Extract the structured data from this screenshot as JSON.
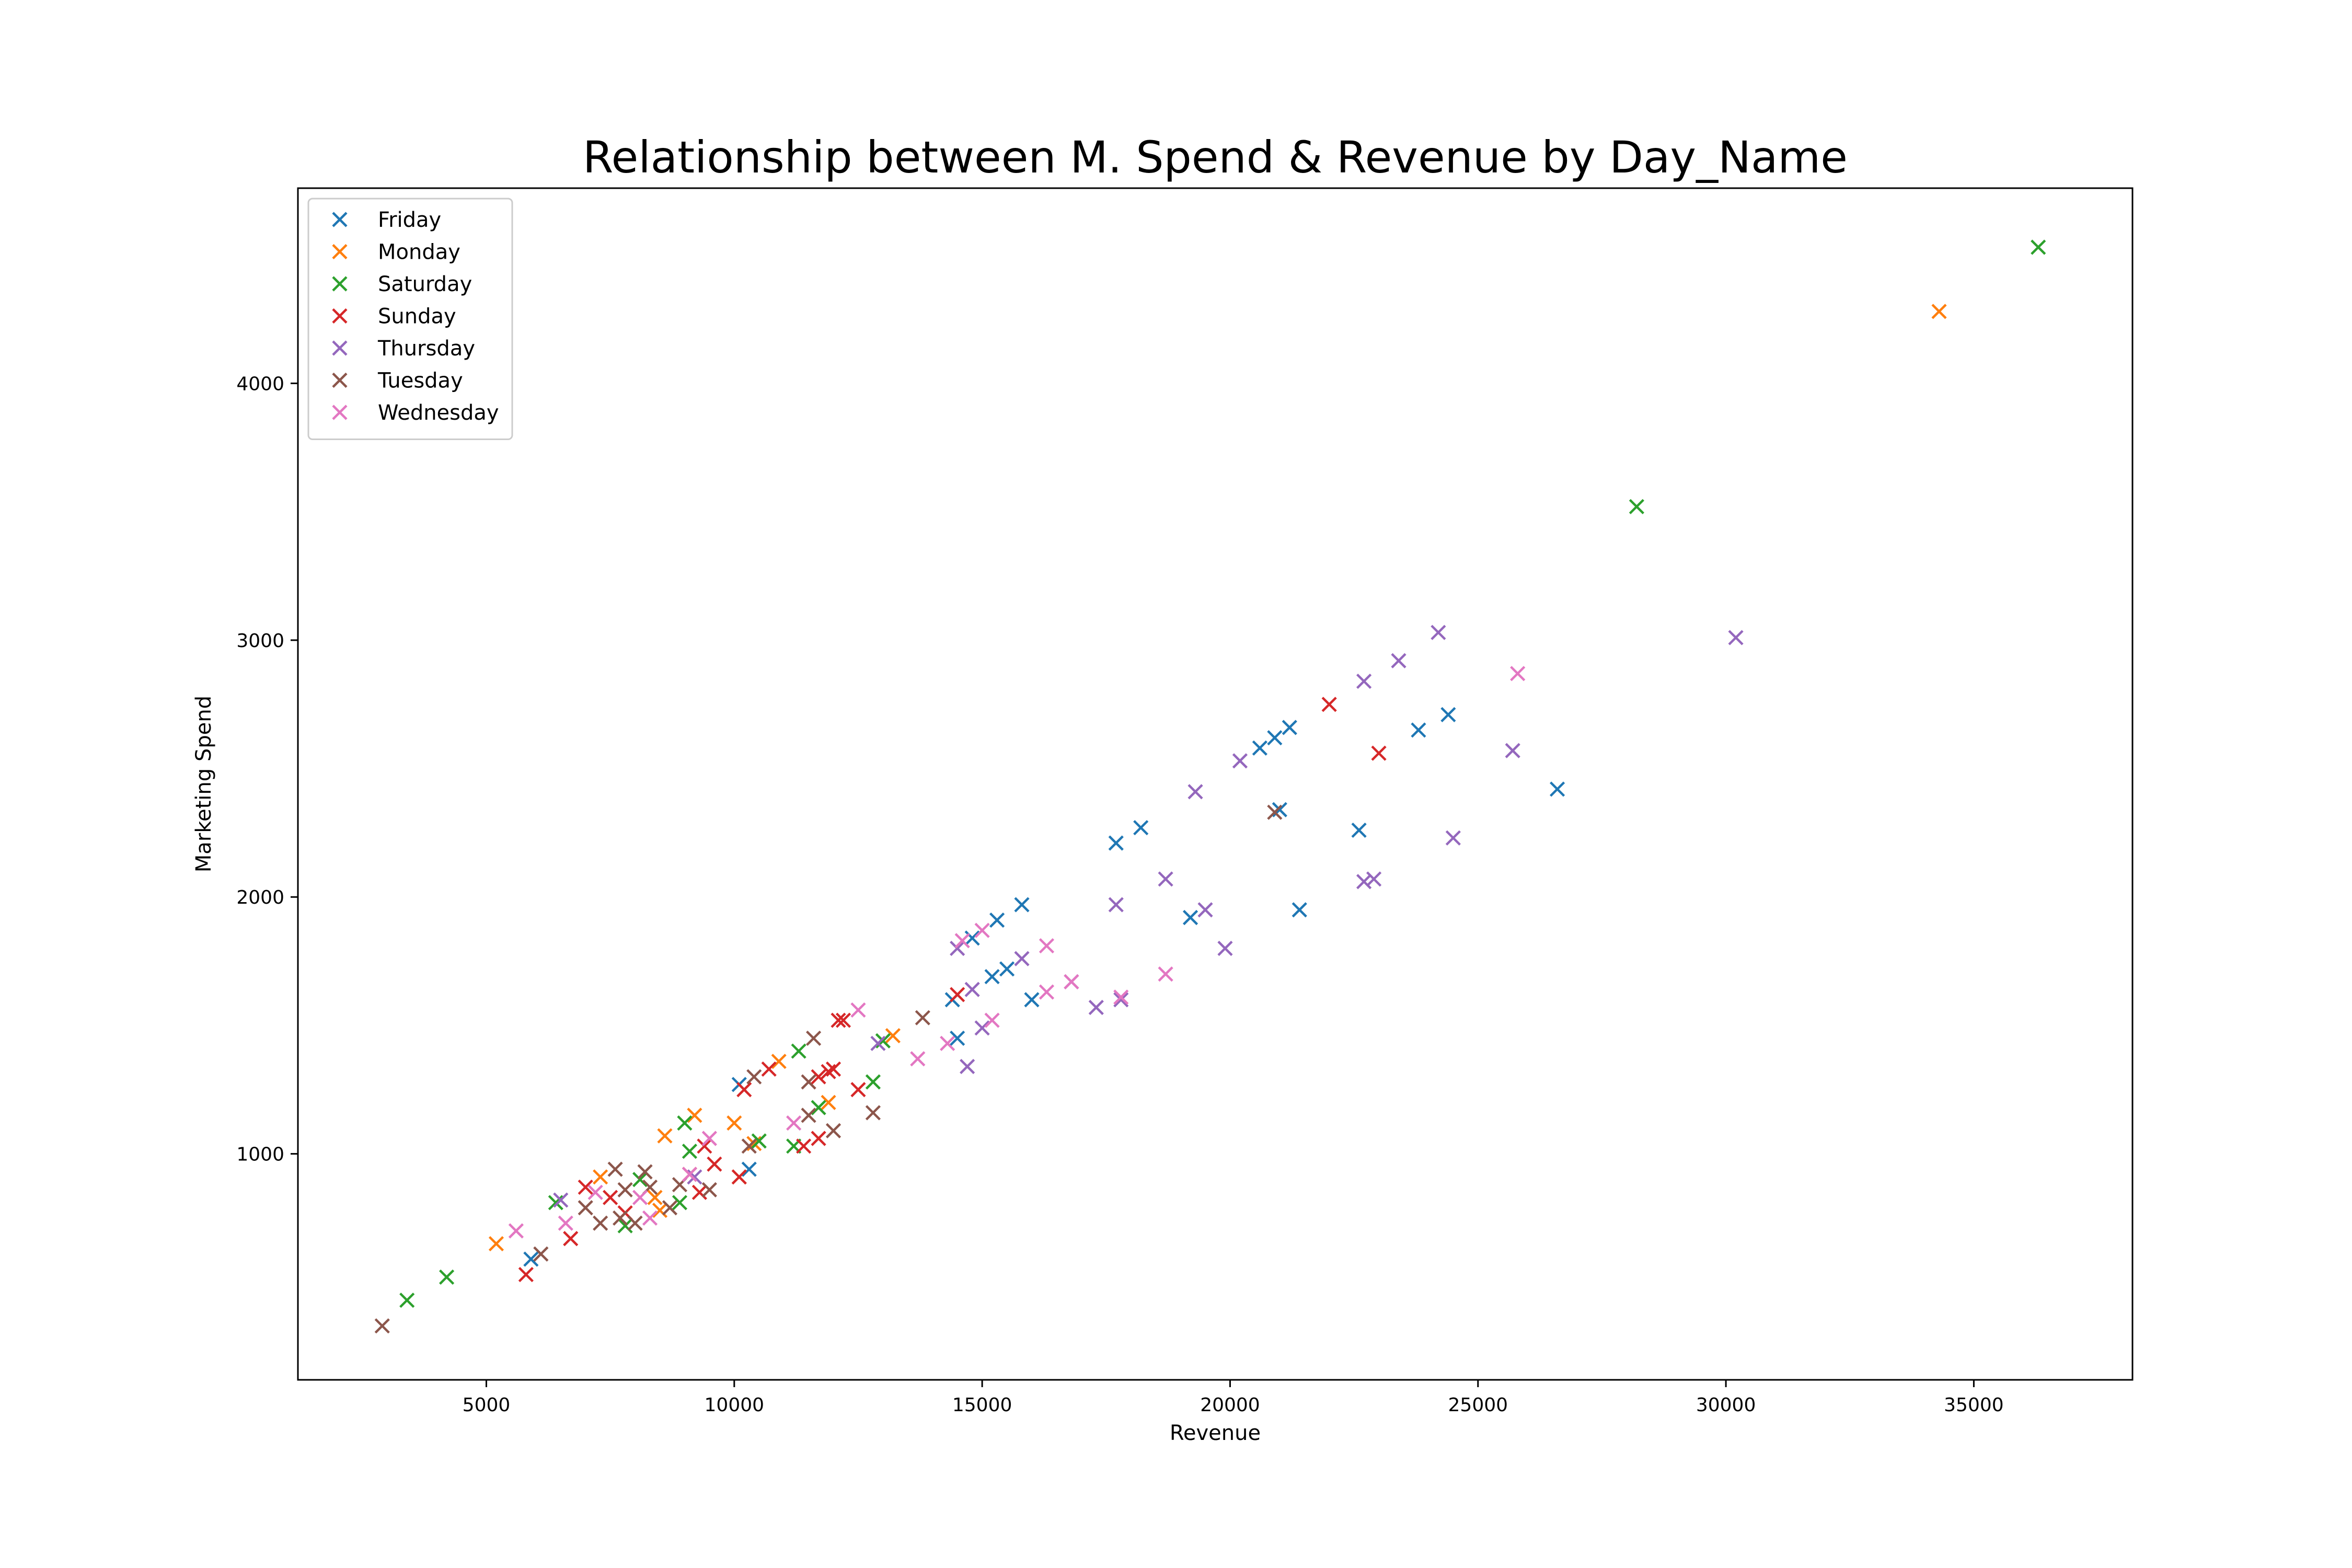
{
  "chart_data": {
    "type": "scatter",
    "title": "Relationship between M. Spend & Revenue by Day_Name",
    "xlabel": "Revenue",
    "ylabel": "Marketing Spend",
    "xlim": [
      1200,
      38200
    ],
    "ylim": [
      120,
      4760
    ],
    "xticks": [
      5000,
      10000,
      15000,
      20000,
      25000,
      30000,
      35000
    ],
    "yticks": [
      1000,
      2000,
      3000,
      4000
    ],
    "grid": false,
    "legend_position": "upper-left",
    "marker": "x",
    "series": [
      {
        "name": "Friday",
        "color": "#1f77b4",
        "points": [
          [
            5900,
            590
          ],
          [
            10100,
            1270
          ],
          [
            10300,
            940
          ],
          [
            14400,
            1600
          ],
          [
            14500,
            1450
          ],
          [
            14800,
            1840
          ],
          [
            15200,
            1690
          ],
          [
            15300,
            1910
          ],
          [
            15500,
            1720
          ],
          [
            15800,
            1970
          ],
          [
            16000,
            1600
          ],
          [
            17700,
            2210
          ],
          [
            18200,
            2270
          ],
          [
            19200,
            1920
          ],
          [
            20600,
            2580
          ],
          [
            20900,
            2620
          ],
          [
            21000,
            2340
          ],
          [
            21200,
            2660
          ],
          [
            21400,
            1950
          ],
          [
            22600,
            2260
          ],
          [
            23800,
            2650
          ],
          [
            24400,
            2710
          ],
          [
            26600,
            2420
          ]
        ]
      },
      {
        "name": "Monday",
        "color": "#ff7f0e",
        "points": [
          [
            5200,
            650
          ],
          [
            7300,
            910
          ],
          [
            8400,
            830
          ],
          [
            8500,
            780
          ],
          [
            8600,
            1070
          ],
          [
            9200,
            1150
          ],
          [
            9100,
            920
          ],
          [
            10000,
            1120
          ],
          [
            10100,
            910
          ],
          [
            10400,
            1040
          ],
          [
            10900,
            1360
          ],
          [
            11900,
            1200
          ],
          [
            13200,
            1460
          ],
          [
            34300,
            4280
          ]
        ]
      },
      {
        "name": "Saturday",
        "color": "#2ca02c",
        "points": [
          [
            3400,
            430
          ],
          [
            4200,
            520
          ],
          [
            6400,
            810
          ],
          [
            7800,
            720
          ],
          [
            8100,
            900
          ],
          [
            8900,
            810
          ],
          [
            9000,
            1120
          ],
          [
            9100,
            1010
          ],
          [
            10500,
            1050
          ],
          [
            11200,
            1030
          ],
          [
            11300,
            1400
          ],
          [
            11700,
            1180
          ],
          [
            12800,
            1280
          ],
          [
            13000,
            1440
          ],
          [
            28200,
            3520
          ],
          [
            36300,
            4530
          ]
        ]
      },
      {
        "name": "Sunday",
        "color": "#d62728",
        "points": [
          [
            5800,
            530
          ],
          [
            6700,
            670
          ],
          [
            7000,
            870
          ],
          [
            7500,
            830
          ],
          [
            7800,
            770
          ],
          [
            9300,
            850
          ],
          [
            9400,
            1030
          ],
          [
            9600,
            960
          ],
          [
            10100,
            910
          ],
          [
            10200,
            1250
          ],
          [
            10700,
            1330
          ],
          [
            11400,
            1030
          ],
          [
            11700,
            1060
          ],
          [
            11700,
            1300
          ],
          [
            11900,
            1320
          ],
          [
            12000,
            1330
          ],
          [
            12100,
            1520
          ],
          [
            12200,
            1520
          ],
          [
            12500,
            1250
          ],
          [
            14500,
            1620
          ],
          [
            22000,
            2750
          ],
          [
            23000,
            2560
          ]
        ]
      },
      {
        "name": "Thursday",
        "color": "#9467bd",
        "points": [
          [
            6500,
            820
          ],
          [
            9200,
            910
          ],
          [
            12900,
            1430
          ],
          [
            14500,
            1800
          ],
          [
            14700,
            1340
          ],
          [
            14800,
            1640
          ],
          [
            15000,
            1490
          ],
          [
            15800,
            1760
          ],
          [
            16800,
            1670
          ],
          [
            17300,
            1570
          ],
          [
            17800,
            1600
          ],
          [
            17700,
            1970
          ],
          [
            18700,
            2070
          ],
          [
            19300,
            2410
          ],
          [
            19500,
            1950
          ],
          [
            19900,
            1800
          ],
          [
            20200,
            2530
          ],
          [
            22700,
            2060
          ],
          [
            22700,
            2840
          ],
          [
            22900,
            2070
          ],
          [
            23400,
            2920
          ],
          [
            24200,
            3030
          ],
          [
            24500,
            2230
          ],
          [
            25700,
            2570
          ],
          [
            30200,
            3010
          ]
        ]
      },
      {
        "name": "Tuesday",
        "color": "#8c564b",
        "points": [
          [
            2900,
            330
          ],
          [
            6100,
            610
          ],
          [
            7000,
            790
          ],
          [
            7300,
            730
          ],
          [
            7600,
            940
          ],
          [
            7700,
            750
          ],
          [
            7800,
            860
          ],
          [
            8000,
            730
          ],
          [
            8200,
            930
          ],
          [
            8300,
            870
          ],
          [
            8700,
            790
          ],
          [
            8900,
            880
          ],
          [
            9500,
            860
          ],
          [
            10300,
            1030
          ],
          [
            10400,
            1300
          ],
          [
            11500,
            1280
          ],
          [
            11500,
            1150
          ],
          [
            11600,
            1450
          ],
          [
            12000,
            1090
          ],
          [
            12800,
            1160
          ],
          [
            13800,
            1530
          ],
          [
            20900,
            2330
          ]
        ]
      },
      {
        "name": "Wednesday",
        "color": "#e377c2",
        "points": [
          [
            5600,
            700
          ],
          [
            6600,
            730
          ],
          [
            7200,
            850
          ],
          [
            8100,
            830
          ],
          [
            8300,
            750
          ],
          [
            9100,
            920
          ],
          [
            9500,
            1060
          ],
          [
            11200,
            1120
          ],
          [
            12500,
            1560
          ],
          [
            13700,
            1370
          ],
          [
            14300,
            1430
          ],
          [
            14600,
            1830
          ],
          [
            15000,
            1870
          ],
          [
            15200,
            1520
          ],
          [
            16300,
            1810
          ],
          [
            16300,
            1630
          ],
          [
            16800,
            1670
          ],
          [
            17800,
            1610
          ],
          [
            18700,
            1700
          ],
          [
            25800,
            2870
          ]
        ]
      }
    ]
  }
}
